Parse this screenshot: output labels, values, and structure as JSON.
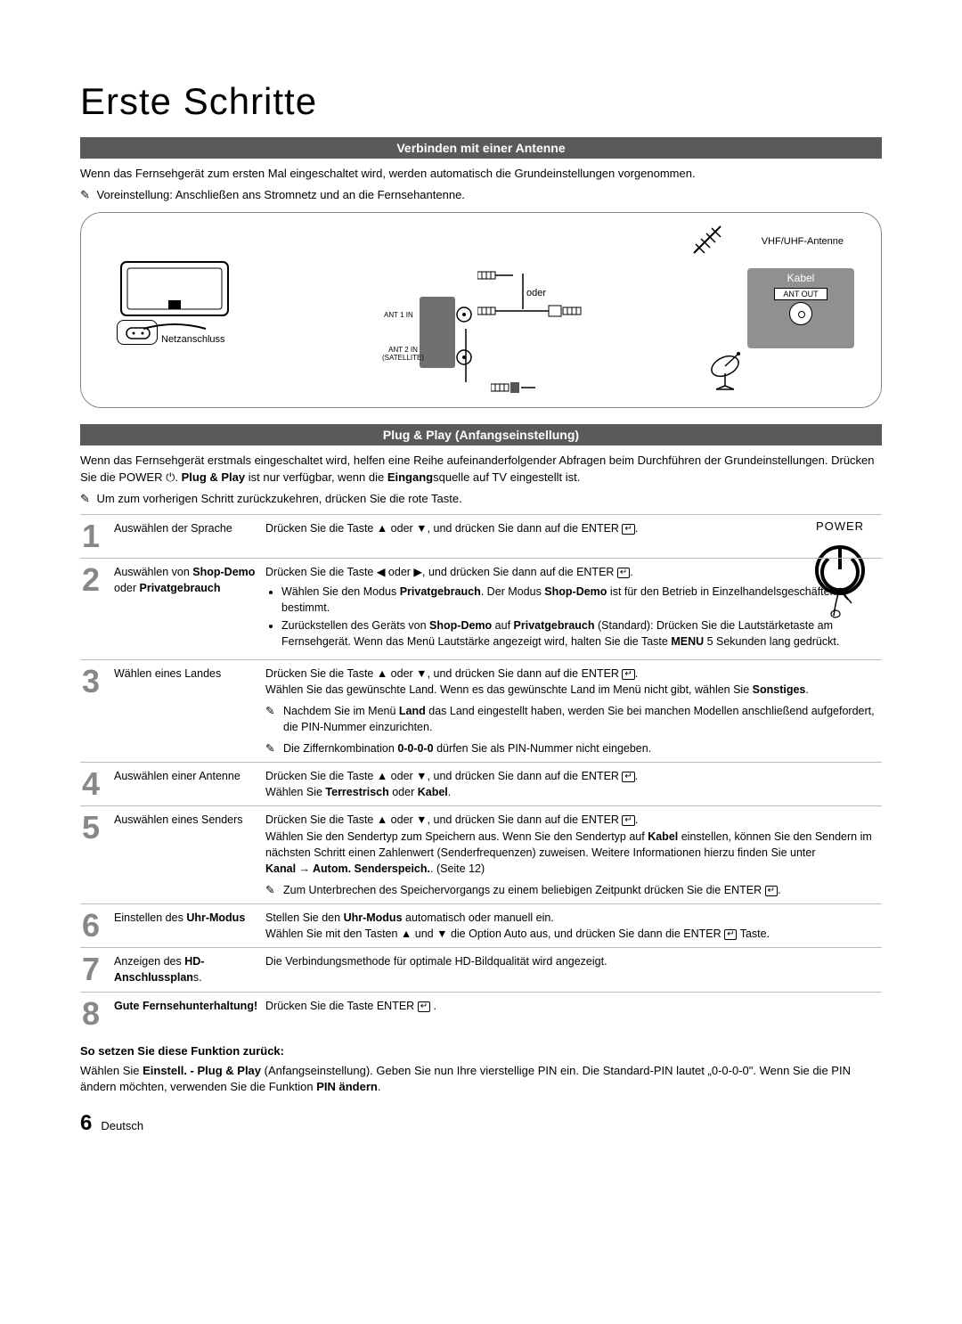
{
  "page": {
    "title": "Erste Schritte",
    "footer_page": "6",
    "footer_lang": "Deutsch"
  },
  "section1": {
    "header": "Verbinden mit einer Antenne",
    "intro": "Wenn das Fernsehgerät zum ersten Mal eingeschaltet wird, werden automatisch die Grundeinstellungen vorgenommen.",
    "preset_note": "Voreinstellung: Anschließen ans Stromnetz und an die Fernsehantenne."
  },
  "diagram": {
    "netzanschluss": "Netzanschluss",
    "ant1": "ANT 1 IN",
    "ant2": "ANT 2 IN\n(SATELLITE)",
    "oder": "oder",
    "vhf": "VHF/UHF-Antenne",
    "kabel": "Kabel",
    "antout": "ANT OUT"
  },
  "section2": {
    "header": "Plug & Play (Anfangseinstellung)",
    "intro_html": "Wenn das Fernsehgerät erstmals eingeschaltet wird, helfen eine Reihe aufeinanderfolgender Abfragen beim Durchführen der Grundeinstellungen. Drücken Sie die POWER ⏻. <b>Plug & Play</b> ist nur verfügbar, wenn die <b>Eingang</b>squelle auf TV eingestellt ist.",
    "back_note": "Um zum vorherigen Schritt zurückzukehren, drücken Sie die rote Taste.",
    "power_label": "POWER"
  },
  "steps": [
    {
      "num": "1",
      "label": "Auswählen der Sprache",
      "desc_html": "Drücken Sie die Taste ▲ oder ▼, und drücken Sie dann auf die ENTER <span class='enter-glyph'>↵</span>."
    },
    {
      "num": "2",
      "label_html": "Auswählen von <b>Shop-Demo</b> oder <b>Privatgebrauch</b>",
      "desc_html": "Drücken Sie die Taste ◀ oder ▶, und drücken Sie dann auf die ENTER <span class='enter-glyph'>↵</span>.<ul><li>Wählen Sie den Modus <b>Privatgebrauch</b>. Der Modus <b>Shop-Demo</b> ist für den Betrieb in Einzelhandelsgeschäften bestimmt.</li><li>Zurückstellen des Geräts von <b>Shop-Demo</b> auf <b>Privatgebrauch</b> (Standard): Drücken Sie die Lautstärketaste am Fernsehgerät. Wenn das Menü Lautstärke angezeigt wird, halten Sie die Taste <b>MENU</b> 5 Sekunden lang gedrückt.</li></ul>"
    },
    {
      "num": "3",
      "label": "Wählen eines Landes",
      "desc_html": "Drücken Sie die Taste ▲ oder ▼, und drücken Sie dann auf die ENTER <span class='enter-glyph'>↵</span>.<br>Wählen Sie das gewünschte Land. Wenn es das gewünschte Land im Menü nicht gibt, wählen Sie <b>Sonstiges</b>.",
      "subnotes_html": [
        "Nachdem Sie im Menü <b>Land</b> das Land eingestellt haben, werden Sie bei manchen Modellen anschließend aufgefordert, die PIN-Nummer einzurichten.",
        "Die Ziffernkombination <b>0-0-0-0</b> dürfen Sie als PIN-Nummer nicht eingeben."
      ]
    },
    {
      "num": "4",
      "label": "Auswählen einer Antenne",
      "desc_html": "Drücken Sie die Taste ▲ oder ▼, und drücken Sie dann auf die ENTER <span class='enter-glyph'>↵</span>.<br>Wählen Sie <b>Terrestrisch</b> oder <b>Kabel</b>."
    },
    {
      "num": "5",
      "label": "Auswählen eines Senders",
      "desc_html": "Drücken Sie die Taste ▲ oder ▼, und drücken Sie dann auf die ENTER <span class='enter-glyph'>↵</span>.<br>Wählen Sie den Sendertyp zum Speichern aus. Wenn Sie den Sendertyp auf <b>Kabel</b> einstellen, können Sie den Sendern im nächsten Schritt einen Zahlenwert (Senderfrequenzen) zuweisen. Weitere Informationen hierzu finden Sie unter<br><b>Kanal → Autom. Senderspeich.</b>. (Seite 12)",
      "subnotes_html": [
        "Zum Unterbrechen des Speichervorgangs zu einem beliebigen Zeitpunkt drücken Sie die ENTER <span class='enter-glyph'>↵</span>."
      ]
    },
    {
      "num": "6",
      "label_html": "Einstellen des <b>Uhr-Modus</b>",
      "desc_html": "Stellen Sie den <b>Uhr-Modus</b> automatisch oder manuell ein.<br>Wählen Sie mit den Tasten ▲ und ▼ die Option Auto aus, und drücken Sie dann die ENTER <span class='enter-glyph'>↵</span> Taste."
    },
    {
      "num": "7",
      "label_html": "Anzeigen des <b>HD-Anschlussplan</b>s.",
      "desc_html": "Die Verbindungsmethode für optimale HD-Bildqualität wird angezeigt."
    },
    {
      "num": "8",
      "label_html": "<b>Gute Fernsehunterhaltung!</b>",
      "desc_html": "Drücken Sie die Taste ENTER <span class='enter-glyph'>↵</span> ."
    }
  ],
  "reset": {
    "heading": "So setzen Sie diese Funktion zurück:",
    "body_html": "Wählen Sie <b>Einstell. - Plug & Play</b> (Anfangseinstellung). Geben Sie nun Ihre vierstellige PIN ein. Die Standard-PIN lautet „0-0-0-0\". Wenn Sie die PIN ändern möchten, verwenden Sie die Funktion <b>PIN ändern</b>."
  },
  "colors": {
    "section_bg": "#5a5a5a",
    "step_num": "#888888",
    "border": "#bbbbbb",
    "kabel_bg": "#909090"
  }
}
